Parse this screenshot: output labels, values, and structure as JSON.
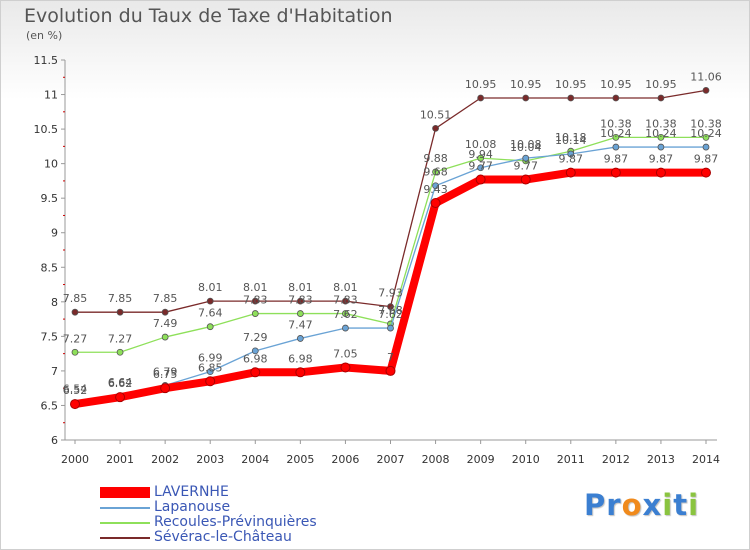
{
  "chart_data": {
    "type": "line",
    "title": "Evolution du Taux de Taxe d'Habitation",
    "subtitle": "(en %)",
    "xlabel": "",
    "ylabel": "",
    "x": [
      "2000",
      "2001",
      "2002",
      "2003",
      "2004",
      "2005",
      "2006",
      "2007",
      "2008",
      "2009",
      "2010",
      "2011",
      "2012",
      "2013",
      "2014"
    ],
    "ylim": [
      6,
      11.5
    ],
    "yticks": [
      "6",
      "6.5",
      "7",
      "7.5",
      "8",
      "8.5",
      "9",
      "9.5",
      "10",
      "10.5",
      "11",
      "11.5"
    ],
    "grid": false,
    "legend_position": "bottom-left",
    "series": [
      {
        "name": "LAVERNHE",
        "color": "#ff0000",
        "values": [
          6.52,
          6.62,
          6.75,
          6.85,
          6.98,
          6.98,
          7.05,
          7.0,
          9.43,
          9.77,
          9.77,
          9.87,
          9.87,
          9.87,
          9.87
        ],
        "labels": [
          "6.52",
          "6.62",
          "6.75",
          "6.85",
          "6.98",
          "6.98",
          "7.05",
          "7",
          "9.43",
          "9.77",
          "9.77",
          "9.87",
          "9.87",
          "9.87",
          "9.87"
        ]
      },
      {
        "name": "Lapanouse",
        "color": "#6aa3d5",
        "values": [
          6.54,
          6.64,
          6.79,
          6.99,
          7.29,
          7.47,
          7.62,
          7.62,
          9.68,
          9.94,
          10.08,
          10.14,
          10.24,
          10.24,
          10.24
        ],
        "labels": [
          "6.54",
          "6.64",
          "6.79",
          "6.99",
          "7.29",
          "7.47",
          "7.62",
          "7.62",
          "9.68",
          "9.94",
          "10.08",
          "10.14",
          "10.24",
          "10.24",
          "10.24"
        ]
      },
      {
        "name": "Recoules-Prévinquières",
        "color": "#8ee05a",
        "values": [
          7.27,
          7.27,
          7.49,
          7.64,
          7.83,
          7.83,
          7.83,
          7.68,
          9.88,
          10.08,
          10.04,
          10.18,
          10.38,
          10.38,
          10.38
        ],
        "labels": [
          "7.27",
          "7.27",
          "7.49",
          "7.64",
          "7.83",
          "7.83",
          "7.83",
          "7.68",
          "9.88",
          "10.08",
          "10.04",
          "10.18",
          "10.38",
          "10.38",
          "10.38"
        ]
      },
      {
        "name": "Sévérac-le-Château",
        "color": "#7a2a2a",
        "values": [
          7.85,
          7.85,
          7.85,
          8.01,
          8.01,
          8.01,
          8.01,
          7.93,
          10.51,
          10.95,
          10.95,
          10.95,
          10.95,
          10.95,
          11.06
        ],
        "labels": [
          "7.85",
          "7.85",
          "7.85",
          "8.01",
          "8.01",
          "8.01",
          "8.01",
          "7.93",
          "10.51",
          "10.95",
          "10.95",
          "10.95",
          "10.95",
          "10.95",
          "11.06"
        ]
      }
    ]
  },
  "logo": {
    "letters": [
      "P",
      "r",
      "o",
      "x",
      "i",
      "t",
      "i"
    ],
    "colors": [
      "#3b7fd1",
      "#3b7fd1",
      "#f08a1c",
      "#3b7fd1",
      "#8ac43f",
      "#3b7fd1",
      "#8ac43f"
    ]
  }
}
